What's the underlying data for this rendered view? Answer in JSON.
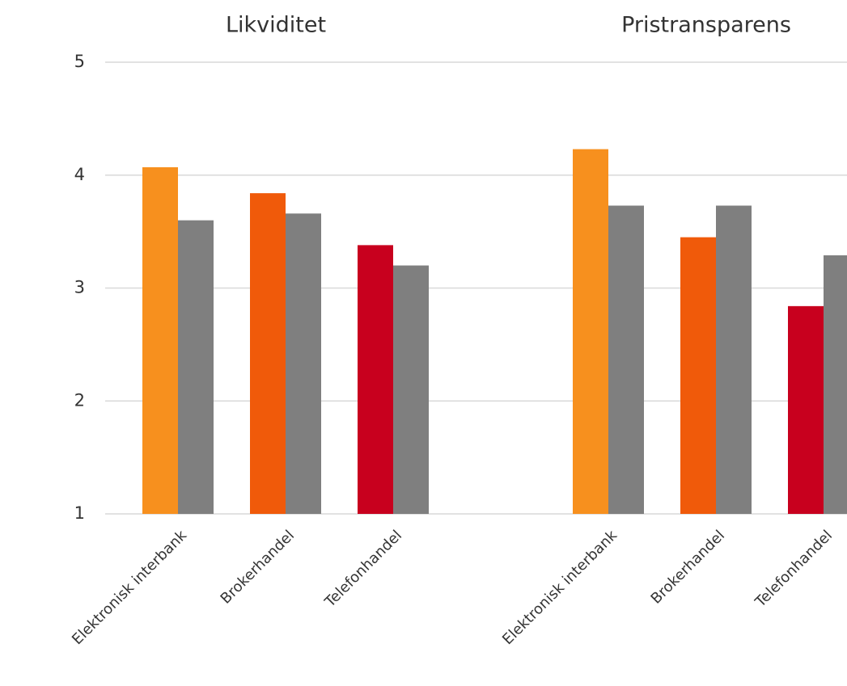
{
  "chart_data": [
    {
      "type": "bar",
      "title": "Likviditet",
      "categories": [
        "Elektronisk interbank",
        "Brokerhandel",
        "Telefonhandel"
      ],
      "series": [
        {
          "colors": [
            "#f7901e",
            "#f05a0a",
            "#c8001e"
          ],
          "values": [
            4.07,
            3.84,
            3.38
          ]
        },
        {
          "color": "#7f7f7f",
          "values": [
            3.6,
            3.66,
            3.2
          ]
        }
      ],
      "ylim": [
        1,
        5
      ],
      "yticks": [
        1,
        2,
        3,
        4,
        5
      ],
      "grid": true
    },
    {
      "type": "bar",
      "title": "Pristransparens",
      "categories": [
        "Elektronisk interbank",
        "Brokerhandel",
        "Telefonhandel"
      ],
      "series": [
        {
          "colors": [
            "#f7901e",
            "#f05a0a",
            "#c8001e"
          ],
          "values": [
            4.23,
            3.45,
            2.84
          ]
        },
        {
          "color": "#7f7f7f",
          "values": [
            3.73,
            3.73,
            3.29
          ]
        }
      ],
      "ylim": [
        1,
        5
      ],
      "grid": true
    }
  ]
}
